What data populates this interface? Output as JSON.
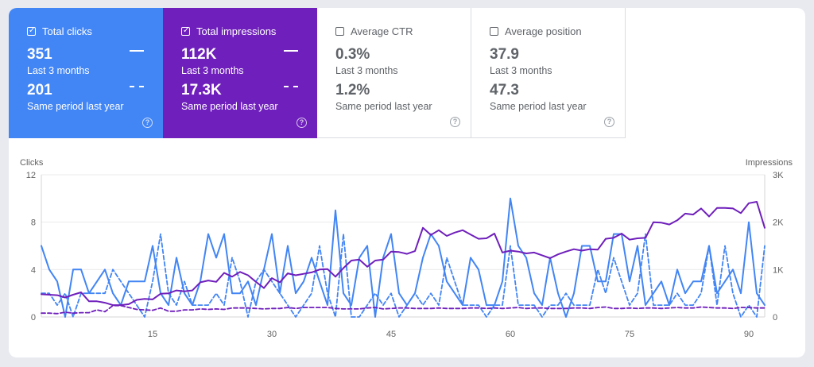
{
  "metrics": [
    {
      "label": "Total clicks",
      "checked": true,
      "value": "351",
      "period": "Last 3 months",
      "prev_value": "201",
      "prev_period": "Same period last year",
      "help": "?"
    },
    {
      "label": "Total impressions",
      "checked": true,
      "value": "112K",
      "period": "Last 3 months",
      "prev_value": "17.3K",
      "prev_period": "Same period last year",
      "help": "?"
    },
    {
      "label": "Average CTR",
      "checked": false,
      "value": "0.3%",
      "period": "Last 3 months",
      "prev_value": "1.2%",
      "prev_period": "Same period last year",
      "help": "?"
    },
    {
      "label": "Average position",
      "checked": false,
      "value": "37.9",
      "period": "Last 3 months",
      "prev_value": "47.3",
      "prev_period": "Same period last year",
      "help": "?"
    }
  ],
  "colors": {
    "clicks": "#4285f4",
    "impressions": "#6f1fbb",
    "grid": "#ebebeb",
    "axis": "#616161"
  },
  "chart_data": {
    "type": "line",
    "ylabel": "Clicks",
    "y2label": "Impressions",
    "y_ticks": [
      0,
      4,
      8,
      12
    ],
    "y_tick_labels": [
      "0",
      "4",
      "8",
      "12"
    ],
    "y2_ticks": [
      0,
      1000,
      2000,
      3000
    ],
    "y2_tick_labels": [
      "0",
      "1K",
      "2K",
      "3K"
    ],
    "x_ticks": [
      15,
      30,
      45,
      60,
      75,
      90
    ],
    "xlim": [
      1,
      92
    ],
    "ylim": [
      0,
      12
    ],
    "y2lim": [
      0,
      3000
    ],
    "grid": true,
    "x": [
      1,
      2,
      3,
      4,
      5,
      6,
      7,
      8,
      9,
      10,
      11,
      12,
      13,
      14,
      15,
      16,
      17,
      18,
      19,
      20,
      21,
      22,
      23,
      24,
      25,
      26,
      27,
      28,
      29,
      30,
      31,
      32,
      33,
      34,
      35,
      36,
      37,
      38,
      39,
      40,
      41,
      42,
      43,
      44,
      45,
      46,
      47,
      48,
      49,
      50,
      51,
      52,
      53,
      54,
      55,
      56,
      57,
      58,
      59,
      60,
      61,
      62,
      63,
      64,
      65,
      66,
      67,
      68,
      69,
      70,
      71,
      72,
      73,
      74,
      75,
      76,
      77,
      78,
      79,
      80,
      81,
      82,
      83,
      84,
      85,
      86,
      87,
      88,
      89,
      90,
      91,
      92
    ],
    "series": [
      {
        "axis": "left",
        "style": "solid",
        "color_key": "clicks",
        "values": [
          6,
          4,
          3,
          0,
          4,
          4,
          2,
          3,
          4,
          2,
          1,
          3,
          3,
          3,
          6,
          2,
          1,
          5,
          2,
          1,
          3,
          7,
          5,
          7,
          2,
          2,
          3,
          1,
          4,
          7,
          2,
          6,
          2,
          3,
          5,
          3,
          1,
          9,
          2,
          1,
          5,
          6,
          0,
          5,
          7,
          2,
          1,
          2,
          5,
          7,
          6,
          3,
          2,
          1,
          5,
          4,
          1,
          1,
          3,
          10,
          6,
          5,
          2,
          1,
          5,
          2,
          0,
          2,
          6,
          6,
          3,
          3,
          7,
          7,
          3,
          6,
          1,
          2,
          3,
          1,
          4,
          2,
          3,
          3,
          6,
          2,
          3,
          4,
          2,
          8,
          2,
          1
        ]
      },
      {
        "axis": "left",
        "style": "dashed",
        "color_key": "clicks",
        "values": [
          2,
          2,
          1,
          2,
          0,
          2,
          2,
          2,
          2,
          4,
          3,
          2,
          1,
          0,
          3,
          7,
          2,
          1,
          3,
          1,
          1,
          1,
          2,
          1,
          5,
          3,
          0,
          3,
          4,
          3,
          2,
          1,
          0,
          1,
          2,
          6,
          2,
          0,
          7,
          0,
          0,
          1,
          2,
          1,
          2,
          0,
          1,
          2,
          1,
          2,
          1,
          5,
          3,
          1,
          1,
          1,
          0,
          1,
          1,
          6,
          1,
          1,
          1,
          0,
          1,
          1,
          2,
          1,
          1,
          1,
          4,
          2,
          5,
          3,
          1,
          2,
          7,
          1,
          1,
          1,
          2,
          1,
          1,
          2,
          6,
          1,
          6,
          2,
          0,
          1,
          0,
          6
        ]
      },
      {
        "axis": "right",
        "style": "solid",
        "color_key": "impressions",
        "values": [
          480,
          470,
          460,
          410,
          470,
          520,
          330,
          330,
          300,
          250,
          250,
          270,
          360,
          380,
          370,
          490,
          500,
          560,
          540,
          560,
          730,
          770,
          740,
          930,
          850,
          950,
          880,
          740,
          610,
          820,
          730,
          920,
          880,
          910,
          940,
          1000,
          1010,
          850,
          1030,
          1190,
          1210,
          1060,
          1190,
          1210,
          1380,
          1370,
          1330,
          1390,
          1880,
          1730,
          1830,
          1710,
          1780,
          1830,
          1740,
          1650,
          1660,
          1760,
          1360,
          1400,
          1380,
          1340,
          1360,
          1300,
          1240,
          1320,
          1380,
          1430,
          1400,
          1430,
          1420,
          1650,
          1670,
          1760,
          1630,
          1660,
          1670,
          2000,
          1990,
          1950,
          2040,
          2180,
          2160,
          2290,
          2120,
          2300,
          2300,
          2290,
          2190,
          2400,
          2430,
          1880
        ]
      },
      {
        "axis": "right",
        "style": "dashed",
        "color_key": "impressions",
        "values": [
          80,
          80,
          70,
          100,
          80,
          90,
          90,
          150,
          110,
          240,
          240,
          200,
          160,
          150,
          140,
          190,
          120,
          120,
          150,
          150,
          170,
          160,
          170,
          160,
          190,
          190,
          190,
          180,
          170,
          180,
          180,
          200,
          180,
          200,
          200,
          200,
          200,
          180,
          170,
          170,
          170,
          190,
          200,
          170,
          180,
          190,
          190,
          180,
          180,
          180,
          190,
          180,
          180,
          180,
          190,
          190,
          180,
          190,
          180,
          190,
          200,
          180,
          190,
          190,
          180,
          180,
          180,
          190,
          190,
          180,
          200,
          210,
          180,
          180,
          190,
          180,
          190,
          190,
          180,
          190,
          200,
          190,
          190,
          210,
          200,
          190,
          190,
          180,
          200,
          200,
          190,
          190
        ]
      }
    ]
  }
}
